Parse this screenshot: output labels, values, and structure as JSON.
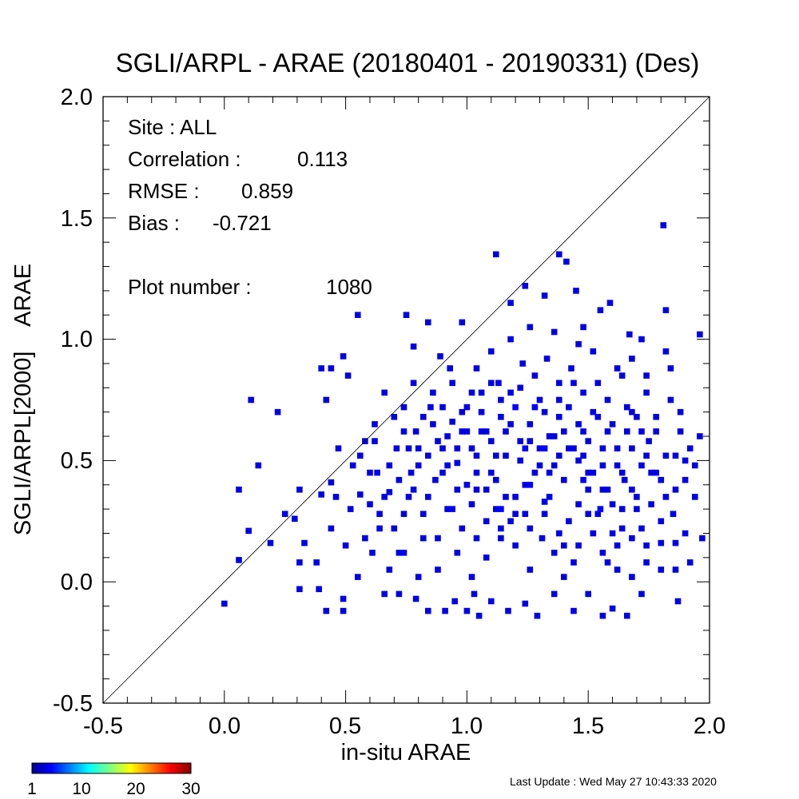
{
  "chart_data": {
    "type": "heatmap",
    "title": "SGLI/ARPL - ARAE (20180401 - 20190331) (Des)",
    "xlabel": "in-situ ARAE",
    "ylabel": "SGLI/ARPL[2000]    ARAE",
    "xlim": [
      -0.5,
      2.0
    ],
    "ylim": [
      -0.5,
      2.0
    ],
    "x_ticks": [
      "-0.5",
      "0.0",
      "0.5",
      "1.0",
      "1.5",
      "2.0"
    ],
    "y_ticks": [
      "-0.5",
      "0.0",
      "0.5",
      "1.0",
      "1.5",
      "2.0"
    ],
    "bin_size": 0.025,
    "one_to_one_line": true,
    "colorbar": {
      "min": 1,
      "max": 30,
      "tick_labels": [
        "1",
        "10",
        "20",
        "30"
      ],
      "colormap": "jet"
    },
    "stats": {
      "site": "Site : ALL",
      "correlation_label": "Correlation :",
      "correlation": "0.113",
      "rmse_label": "RMSE :",
      "rmse": "0.859",
      "bias_label": "Bias :",
      "bias": "-0.721",
      "plot_number_label": "Plot number :",
      "plot_number": "1080"
    },
    "points": [
      [
        0.0,
        -0.09,
        1
      ],
      [
        0.06,
        0.09,
        1
      ],
      [
        0.1,
        0.21,
        1
      ],
      [
        0.19,
        0.16,
        1
      ],
      [
        0.25,
        0.28,
        1
      ],
      [
        0.29,
        0.26,
        1
      ],
      [
        0.31,
        0.38,
        1
      ],
      [
        0.11,
        0.75,
        1
      ],
      [
        0.14,
        0.48,
        1
      ],
      [
        0.22,
        0.7,
        1
      ],
      [
        0.06,
        0.38,
        1
      ],
      [
        0.33,
        0.16,
        1
      ],
      [
        0.31,
        0.08,
        1
      ],
      [
        0.38,
        0.08,
        1
      ],
      [
        0.39,
        -0.03,
        1
      ],
      [
        0.4,
        0.88,
        1
      ],
      [
        0.44,
        0.88,
        1
      ],
      [
        0.42,
        0.75,
        1
      ],
      [
        0.49,
        0.93,
        1
      ],
      [
        0.51,
        0.85,
        1
      ],
      [
        0.55,
        1.1,
        1
      ],
      [
        0.31,
        -0.03,
        1
      ],
      [
        0.42,
        -0.12,
        1
      ],
      [
        0.49,
        -0.12,
        1
      ],
      [
        0.49,
        -0.07,
        1
      ],
      [
        0.4,
        0.36,
        1
      ],
      [
        0.44,
        0.41,
        1
      ],
      [
        0.47,
        0.55,
        1
      ],
      [
        0.53,
        0.48,
        1
      ],
      [
        0.56,
        0.36,
        1
      ],
      [
        0.58,
        0.58,
        1
      ],
      [
        0.62,
        0.65,
        1
      ],
      [
        0.66,
        0.78,
        1
      ],
      [
        0.71,
        0.55,
        1
      ],
      [
        0.75,
        1.1,
        1
      ],
      [
        0.78,
        0.97,
        1
      ],
      [
        0.84,
        1.07,
        1
      ],
      [
        0.89,
        0.93,
        1
      ],
      [
        0.93,
        0.88,
        1
      ],
      [
        0.98,
        1.07,
        1
      ],
      [
        0.6,
        0.32,
        1
      ],
      [
        0.63,
        0.45,
        1
      ],
      [
        0.64,
        0.22,
        1
      ],
      [
        0.68,
        0.37,
        1
      ],
      [
        0.72,
        0.12,
        1
      ],
      [
        0.74,
        0.28,
        1
      ],
      [
        0.77,
        0.45,
        1
      ],
      [
        0.79,
        0.62,
        1
      ],
      [
        0.82,
        0.18,
        1
      ],
      [
        0.85,
        0.72,
        1
      ],
      [
        0.87,
        0.42,
        1
      ],
      [
        0.9,
        0.55,
        1
      ],
      [
        0.92,
        0.3,
        1
      ],
      [
        0.94,
        0.66,
        1
      ],
      [
        0.96,
        0.49,
        1
      ],
      [
        0.98,
        0.22,
        1
      ],
      [
        0.66,
        -0.05,
        1
      ],
      [
        0.72,
        -0.05,
        1
      ],
      [
        0.79,
        -0.07,
        1
      ],
      [
        0.84,
        -0.12,
        1
      ],
      [
        0.91,
        -0.12,
        1
      ],
      [
        0.95,
        -0.08,
        1
      ],
      [
        1.0,
        -0.12,
        1
      ],
      [
        1.03,
        -0.05,
        1
      ],
      [
        1.05,
        -0.14,
        1
      ],
      [
        1.1,
        -0.08,
        1
      ],
      [
        1.17,
        -0.12,
        1
      ],
      [
        1.24,
        -0.09,
        1
      ],
      [
        1.29,
        -0.14,
        1
      ],
      [
        1.36,
        -0.05,
        1
      ],
      [
        1.44,
        -0.12,
        1
      ],
      [
        1.5,
        -0.05,
        1
      ],
      [
        1.56,
        -0.14,
        1
      ],
      [
        1.6,
        -0.11,
        1
      ],
      [
        1.66,
        -0.14,
        1
      ],
      [
        1.72,
        -0.05,
        1
      ],
      [
        1.87,
        -0.08,
        1
      ],
      [
        1.0,
        0.72,
        1
      ],
      [
        1.02,
        0.55,
        1
      ],
      [
        1.04,
        0.38,
        1
      ],
      [
        1.06,
        0.78,
        1
      ],
      [
        1.08,
        0.62,
        1
      ],
      [
        1.1,
        0.45,
        1
      ],
      [
        1.12,
        0.3,
        1
      ],
      [
        1.14,
        0.68,
        1
      ],
      [
        1.16,
        0.52,
        1
      ],
      [
        1.18,
        0.25,
        1
      ],
      [
        1.2,
        0.72,
        2
      ],
      [
        1.22,
        0.58,
        1
      ],
      [
        1.24,
        0.4,
        1
      ],
      [
        1.26,
        0.65,
        1
      ],
      [
        1.28,
        0.85,
        1
      ],
      [
        1.3,
        0.48,
        1
      ],
      [
        1.32,
        0.7,
        1
      ],
      [
        1.34,
        0.35,
        1
      ],
      [
        1.36,
        0.6,
        1
      ],
      [
        1.38,
        0.75,
        1
      ],
      [
        1.4,
        0.42,
        1
      ],
      [
        1.42,
        0.55,
        1
      ],
      [
        1.44,
        0.82,
        1
      ],
      [
        1.46,
        0.32,
        1
      ],
      [
        1.48,
        0.62,
        1
      ],
      [
        1.5,
        0.45,
        1
      ],
      [
        1.52,
        0.7,
        1
      ],
      [
        1.54,
        0.28,
        1
      ],
      [
        1.56,
        0.55,
        1
      ],
      [
        1.58,
        0.38,
        1
      ],
      [
        1.6,
        0.65,
        1
      ],
      [
        1.62,
        0.48,
        1
      ],
      [
        1.64,
        0.22,
        1
      ],
      [
        1.66,
        0.72,
        1
      ],
      [
        1.68,
        0.55,
        1
      ],
      [
        1.7,
        0.35,
        1
      ],
      [
        1.72,
        0.62,
        1
      ],
      [
        1.74,
        0.85,
        1
      ],
      [
        1.76,
        0.45,
        1
      ],
      [
        1.78,
        0.68,
        1
      ],
      [
        1.8,
        0.25,
        1
      ],
      [
        1.82,
        0.52,
        1
      ],
      [
        1.84,
        0.75,
        1
      ],
      [
        1.86,
        0.38,
        1
      ],
      [
        1.88,
        0.62,
        1
      ],
      [
        1.9,
        0.42,
        1
      ],
      [
        1.92,
        0.55,
        1
      ],
      [
        1.94,
        0.35,
        1
      ],
      [
        1.96,
        0.6,
        1
      ],
      [
        1.12,
        1.35,
        1
      ],
      [
        1.18,
        1.15,
        1
      ],
      [
        1.24,
        1.22,
        1
      ],
      [
        1.32,
        1.18,
        1
      ],
      [
        1.38,
        1.35,
        1
      ],
      [
        1.41,
        1.32,
        1
      ],
      [
        1.45,
        1.2,
        1
      ],
      [
        1.48,
        1.05,
        1
      ],
      [
        1.55,
        1.12,
        1
      ],
      [
        1.59,
        1.15,
        1
      ],
      [
        1.67,
        1.02,
        1
      ],
      [
        1.72,
        1.0,
        1
      ],
      [
        1.82,
        1.12,
        1
      ],
      [
        1.81,
        1.47,
        1
      ],
      [
        1.96,
        1.02,
        1
      ],
      [
        1.82,
        0.95,
        1
      ],
      [
        1.68,
        0.92,
        1
      ],
      [
        1.62,
        0.88,
        1
      ],
      [
        1.52,
        0.95,
        1
      ],
      [
        1.46,
        0.98,
        1
      ],
      [
        1.36,
        1.03,
        1
      ],
      [
        1.26,
        1.05,
        1
      ],
      [
        1.18,
        1.0,
        1
      ],
      [
        1.1,
        0.95,
        1
      ],
      [
        1.04,
        0.88,
        1
      ],
      [
        1.13,
        0.82,
        1
      ],
      [
        1.23,
        0.9,
        1
      ],
      [
        1.33,
        0.92,
        1
      ],
      [
        1.43,
        0.88,
        1
      ],
      [
        1.54,
        0.82,
        1
      ],
      [
        1.64,
        0.85,
        1
      ],
      [
        1.74,
        0.78,
        1
      ],
      [
        1.84,
        0.88,
        1
      ],
      [
        1.9,
        0.5,
        1
      ],
      [
        1.86,
        0.16,
        1
      ],
      [
        1.04,
        0.18,
        1
      ],
      [
        1.08,
        0.1,
        1
      ],
      [
        1.14,
        0.22,
        1
      ],
      [
        1.2,
        0.15,
        1
      ],
      [
        1.26,
        0.05,
        1
      ],
      [
        1.31,
        0.18,
        1
      ],
      [
        1.36,
        0.12,
        1
      ],
      [
        1.4,
        0.02,
        1
      ],
      [
        1.46,
        0.15,
        1
      ],
      [
        1.52,
        0.2,
        1
      ],
      [
        1.58,
        0.08,
        1
      ],
      [
        1.62,
        0.15,
        1
      ],
      [
        1.68,
        0.02,
        1
      ],
      [
        1.74,
        0.15,
        1
      ],
      [
        1.8,
        0.16,
        1
      ],
      [
        1.86,
        0.05,
        1
      ],
      [
        1.92,
        0.08,
        1
      ],
      [
        1.97,
        0.18,
        1
      ],
      [
        1.02,
        0.02,
        1
      ],
      [
        0.96,
        0.12,
        1
      ],
      [
        0.88,
        0.05,
        1
      ],
      [
        0.8,
        0.02,
        1
      ],
      [
        0.74,
        0.12,
        1
      ],
      [
        0.68,
        0.05,
        1
      ],
      [
        0.61,
        0.12,
        1
      ],
      [
        0.55,
        0.02,
        1
      ],
      [
        0.5,
        0.15,
        1
      ],
      [
        0.44,
        0.22,
        1
      ],
      [
        1.14,
        0.3,
        2
      ],
      [
        1.16,
        0.62,
        1
      ],
      [
        1.22,
        0.5,
        1
      ],
      [
        1.26,
        0.4,
        2
      ],
      [
        1.3,
        0.55,
        1
      ],
      [
        1.34,
        0.45,
        1
      ],
      [
        1.38,
        0.68,
        1
      ],
      [
        1.42,
        0.25,
        1
      ],
      [
        1.46,
        0.5,
        1
      ],
      [
        1.5,
        0.38,
        1
      ],
      [
        1.55,
        0.3,
        2
      ],
      [
        1.6,
        0.2,
        1
      ],
      [
        1.65,
        0.42,
        1
      ],
      [
        1.7,
        0.3,
        1
      ],
      [
        1.75,
        0.58,
        1
      ],
      [
        1.8,
        0.42,
        1
      ],
      [
        1.85,
        0.28,
        1
      ],
      [
        1.9,
        0.2,
        1
      ],
      [
        1.18,
        0.78,
        1
      ],
      [
        1.28,
        0.72,
        2
      ],
      [
        1.38,
        0.82,
        1
      ],
      [
        1.48,
        0.78,
        1
      ],
      [
        1.58,
        0.75,
        1
      ],
      [
        1.68,
        0.7,
        1
      ],
      [
        1.78,
        0.62,
        1
      ],
      [
        1.88,
        0.7,
        1
      ],
      [
        1.94,
        0.48,
        1
      ],
      [
        1.24,
        0.28,
        1
      ],
      [
        1.32,
        0.33,
        1
      ],
      [
        1.4,
        0.15,
        1
      ],
      [
        1.48,
        0.42,
        2
      ],
      [
        1.56,
        0.48,
        1
      ],
      [
        1.64,
        0.3,
        1
      ],
      [
        1.72,
        0.22,
        1
      ],
      [
        1.12,
        0.52,
        1
      ],
      [
        1.06,
        0.62,
        1
      ],
      [
        1.0,
        0.4,
        1
      ],
      [
        0.94,
        0.3,
        1
      ],
      [
        0.88,
        0.18,
        1
      ],
      [
        0.82,
        0.28,
        1
      ],
      [
        0.76,
        0.35,
        1
      ],
      [
        0.7,
        0.22,
        1
      ],
      [
        0.64,
        0.28,
        1
      ],
      [
        0.58,
        0.18,
        1
      ],
      [
        0.52,
        0.3,
        1
      ],
      [
        0.46,
        0.35,
        1
      ],
      [
        0.56,
        0.52,
        1
      ],
      [
        0.62,
        0.58,
        1
      ],
      [
        0.68,
        0.48,
        1
      ],
      [
        0.74,
        0.62,
        1
      ],
      [
        0.8,
        0.55,
        1
      ],
      [
        0.86,
        0.65,
        1
      ],
      [
        0.92,
        0.6,
        1
      ],
      [
        0.98,
        0.7,
        1
      ],
      [
        1.04,
        0.52,
        1
      ],
      [
        1.1,
        0.58,
        1
      ],
      [
        0.6,
        0.45,
        1
      ],
      [
        0.66,
        0.35,
        1
      ],
      [
        0.72,
        0.42,
        1
      ],
      [
        0.78,
        0.38,
        1
      ],
      [
        0.84,
        0.52,
        1
      ],
      [
        0.9,
        0.45,
        1
      ],
      [
        0.96,
        0.38,
        1
      ],
      [
        1.02,
        0.32,
        1
      ],
      [
        1.08,
        0.25,
        1
      ],
      [
        1.14,
        0.18,
        1
      ],
      [
        1.2,
        0.35,
        1
      ],
      [
        1.26,
        0.22,
        1
      ],
      [
        1.32,
        0.28,
        1
      ],
      [
        1.38,
        0.2,
        1
      ],
      [
        1.44,
        0.08,
        1
      ],
      [
        1.5,
        0.28,
        1
      ],
      [
        1.56,
        0.12,
        1
      ],
      [
        1.62,
        0.05,
        1
      ],
      [
        1.68,
        0.18,
        1
      ],
      [
        1.74,
        0.08,
        1
      ],
      [
        1.8,
        0.05,
        1
      ],
      [
        0.78,
        0.82,
        1
      ],
      [
        0.82,
        0.68,
        1
      ],
      [
        0.86,
        0.78,
        1
      ],
      [
        0.9,
        0.72,
        1
      ],
      [
        0.94,
        0.82,
        1
      ],
      [
        0.98,
        0.62,
        1
      ],
      [
        1.02,
        0.78,
        1
      ],
      [
        1.06,
        0.7,
        1
      ],
      [
        1.1,
        0.82,
        1
      ],
      [
        1.14,
        0.75,
        1
      ],
      [
        1.18,
        0.65,
        1
      ],
      [
        1.22,
        0.8,
        1
      ],
      [
        1.26,
        0.58,
        1
      ],
      [
        1.3,
        0.75,
        1
      ],
      [
        1.34,
        0.6,
        1
      ],
      [
        1.38,
        0.52,
        1
      ],
      [
        1.42,
        0.72,
        1
      ],
      [
        1.46,
        0.65,
        1
      ],
      [
        1.5,
        0.58,
        1
      ],
      [
        1.54,
        0.68,
        1
      ],
      [
        1.58,
        0.62,
        1
      ],
      [
        1.62,
        0.55,
        1
      ],
      [
        1.66,
        0.62,
        1
      ],
      [
        1.7,
        0.68,
        1
      ],
      [
        1.74,
        0.52,
        1
      ],
      [
        1.78,
        0.45,
        1
      ],
      [
        1.82,
        0.35,
        1
      ],
      [
        1.86,
        0.52,
        1
      ],
      [
        0.7,
        0.68,
        1
      ],
      [
        0.74,
        0.72,
        1
      ],
      [
        0.76,
        0.55,
        1
      ],
      [
        0.8,
        0.48,
        1
      ],
      [
        0.84,
        0.35,
        1
      ],
      [
        0.88,
        0.58,
        1
      ],
      [
        0.92,
        0.48,
        1
      ],
      [
        0.96,
        0.55,
        1
      ],
      [
        1.0,
        0.62,
        1
      ],
      [
        1.04,
        0.45,
        1
      ],
      [
        1.08,
        0.38,
        1
      ],
      [
        1.12,
        0.42,
        1
      ],
      [
        1.16,
        0.35,
        1
      ],
      [
        1.2,
        0.28,
        1
      ],
      [
        1.24,
        0.55,
        2
      ],
      [
        1.28,
        0.45,
        1
      ],
      [
        1.32,
        0.55,
        2
      ],
      [
        1.36,
        0.48,
        1
      ],
      [
        1.4,
        0.62,
        1
      ],
      [
        1.44,
        0.55,
        1
      ],
      [
        1.48,
        0.52,
        1
      ],
      [
        1.52,
        0.45,
        1
      ],
      [
        1.56,
        0.38,
        1
      ],
      [
        1.6,
        0.32,
        1
      ],
      [
        1.64,
        0.45,
        1
      ],
      [
        1.68,
        0.38,
        1
      ],
      [
        1.72,
        0.48,
        1
      ],
      [
        1.76,
        0.32,
        1
      ]
    ],
    "footer": "Last Update : Wed May 27 10:43:33 2020"
  }
}
